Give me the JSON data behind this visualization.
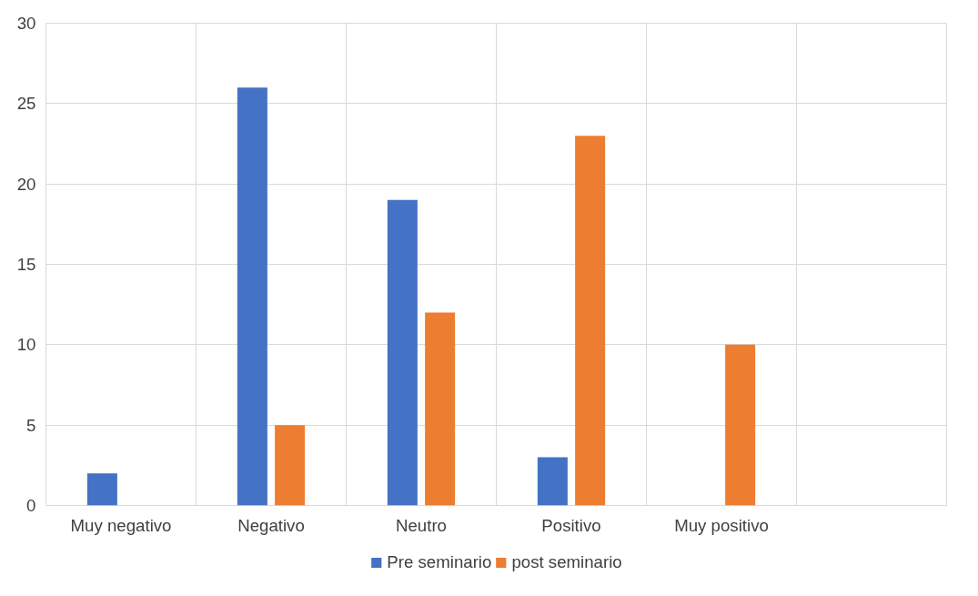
{
  "chart_data": {
    "type": "bar",
    "categories": [
      "Muy negativo",
      "Negativo",
      "Neutro",
      "Positivo",
      "Muy positivo",
      null
    ],
    "series": [
      {
        "name": "Pre seminario",
        "color": "#4472c4",
        "values": [
          2,
          26,
          19,
          3,
          null,
          null
        ]
      },
      {
        "name": "post seminario",
        "color": "#ed7d31",
        "values": [
          null,
          5,
          12,
          23,
          10,
          null
        ]
      }
    ],
    "ylim": [
      0,
      30
    ],
    "yticks": [
      0,
      5,
      10,
      15,
      20,
      25,
      30
    ],
    "grid": true,
    "legend": "bottom"
  }
}
